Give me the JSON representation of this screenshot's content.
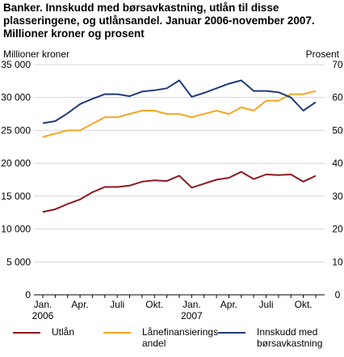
{
  "chart_data": {
    "type": "line",
    "title": "Banker. Innskudd med børsavkastning, utlån til disse plasseringene, og utlånsandel. Januar 2006-november 2007. Millioner kroner og prosent",
    "ylabel_left": "Millioner kroner",
    "ylabel_right": "Prosent",
    "ylim_left": [
      0,
      35000
    ],
    "ylim_right": [
      0,
      70
    ],
    "yticks_left": [
      "0",
      "5 000",
      "10 000",
      "15 000",
      "20 000",
      "25 000",
      "30 000",
      "35 000"
    ],
    "yticks_right": [
      "0",
      "10",
      "20",
      "30",
      "40",
      "50",
      "60",
      "70"
    ],
    "x_tick_labels": [
      {
        "index": 0,
        "line1": "Jan.",
        "line2": "2006"
      },
      {
        "index": 3,
        "line1": "Apr.",
        "line2": ""
      },
      {
        "index": 6,
        "line1": "Juli",
        "line2": ""
      },
      {
        "index": 9,
        "line1": "Okt.",
        "line2": ""
      },
      {
        "index": 12,
        "line1": "Jan.",
        "line2": "2007"
      },
      {
        "index": 15,
        "line1": "Apr.",
        "line2": ""
      },
      {
        "index": 18,
        "line1": "Juli",
        "line2": ""
      },
      {
        "index": 21,
        "line1": "Okt.",
        "line2": ""
      }
    ],
    "n_points": 23,
    "grid": true,
    "legend_position": "bottom",
    "series": [
      {
        "name": "Utlån",
        "axis": "left",
        "color": "#8b1a1f",
        "values": [
          12600,
          13000,
          13800,
          14500,
          15600,
          16400,
          16400,
          16600,
          17200,
          17400,
          17300,
          18100,
          16300,
          16900,
          17500,
          17800,
          18700,
          17600,
          18300,
          18200,
          18300,
          17200,
          18100
        ]
      },
      {
        "name": "Lånefinansierings-\nandel",
        "axis": "right",
        "color": "#f5a623",
        "values": [
          48,
          49,
          50,
          50,
          52,
          54,
          54,
          55,
          56,
          56,
          55,
          55,
          54,
          55,
          56,
          55,
          57,
          56,
          59,
          59,
          61,
          61,
          62
        ]
      },
      {
        "name": "Innskudd med\nbørsavkastning",
        "axis": "left",
        "color": "#1f3a7a",
        "values": [
          26100,
          26400,
          27600,
          29000,
          29800,
          30500,
          30500,
          30200,
          30900,
          31100,
          31400,
          32600,
          30100,
          30700,
          31400,
          32100,
          32600,
          31000,
          31000,
          30800,
          30000,
          28000,
          29300
        ]
      }
    ]
  }
}
